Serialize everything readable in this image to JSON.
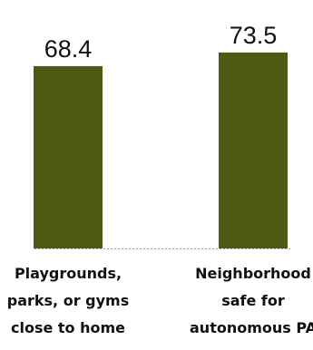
{
  "chart_data": {
    "type": "bar",
    "categories": [
      "Playgrounds, parks, or gyms close to home",
      "Neighborhood safe for autonomous PA"
    ],
    "category_lines": [
      [
        "Playgrounds,",
        "parks, or gyms",
        "close to home"
      ],
      [
        "Neighborhood",
        "safe for",
        "autonomous PA"
      ]
    ],
    "values": [
      68.4,
      73.5
    ],
    "value_labels": [
      "68.4",
      "73.5"
    ],
    "title": "",
    "xlabel": "",
    "ylabel": "",
    "ylim": [
      0,
      80
    ],
    "grid": false,
    "legend": "none",
    "bar_color": "#4d5a13"
  }
}
